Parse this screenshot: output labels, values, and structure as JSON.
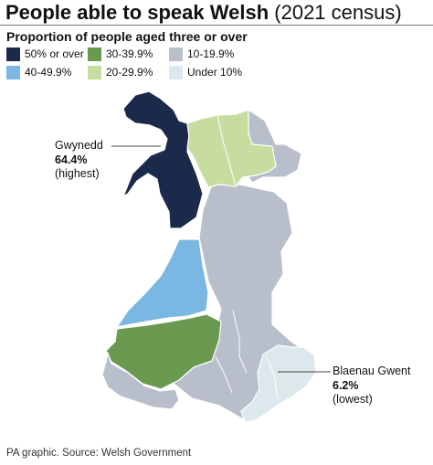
{
  "header": {
    "title_bold": "People able to speak Welsh",
    "title_light": "(2021 census)",
    "subtitle": "Proportion of people aged three or over"
  },
  "legend": [
    {
      "label": "50% or over",
      "color": "#1b2a4a"
    },
    {
      "label": "30-39.9%",
      "color": "#6a9a50"
    },
    {
      "label": "10-19.9%",
      "color": "#b9bfca"
    },
    {
      "label": "40-49.9%",
      "color": "#7ab8e3"
    },
    {
      "label": "20-29.9%",
      "color": "#c7dda0"
    },
    {
      "label": "Under 10%",
      "color": "#dde8ec"
    }
  ],
  "callouts": {
    "highest": {
      "name": "Gwynedd",
      "value": "64.4%",
      "note": "(highest)"
    },
    "lowest": {
      "name": "Blaenau Gwent",
      "value": "6.2%",
      "note": "(lowest)"
    }
  },
  "colors": {
    "border": "#ffffff",
    "leader": "#444444"
  },
  "footer": {
    "source": "PA graphic. Source: Welsh Government"
  }
}
